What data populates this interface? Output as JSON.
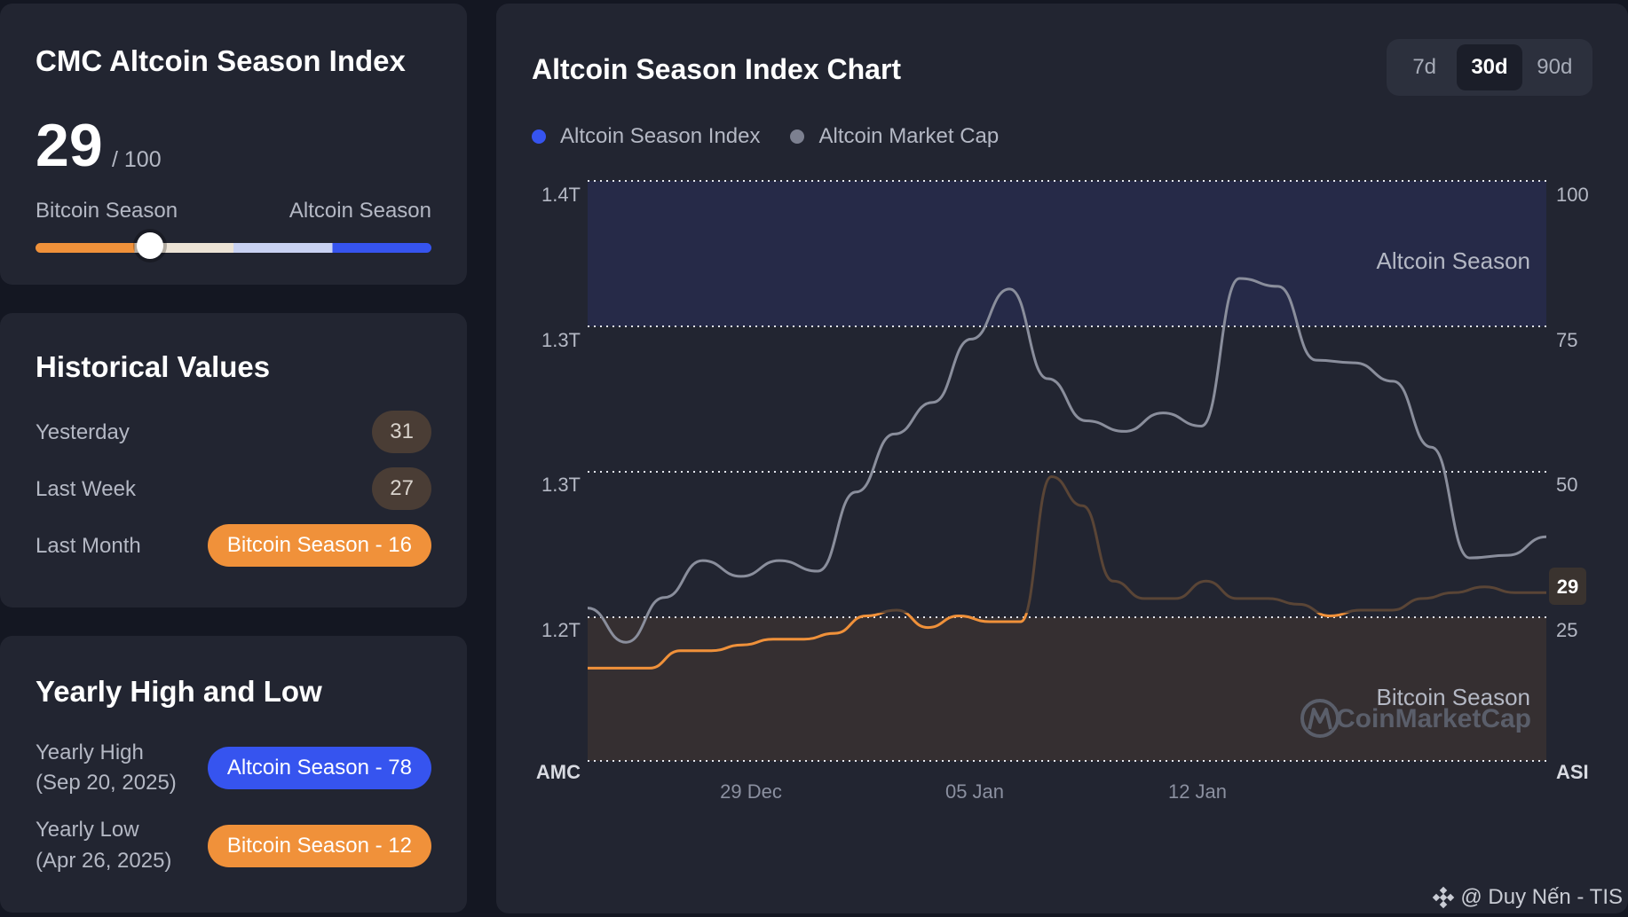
{
  "index_card": {
    "title": "CMC Altcoin Season Index",
    "value": "29",
    "max": "/ 100",
    "left_label": "Bitcoin Season",
    "right_label": "Altcoin Season",
    "level": 0.29
  },
  "historical": {
    "title": "Historical Values",
    "rows": [
      {
        "label": "Yesterday",
        "value": "31"
      },
      {
        "label": "Last Week",
        "value": "27"
      },
      {
        "label": "Last Month",
        "value": "Bitcoin Season - 16"
      }
    ]
  },
  "yearly": {
    "title": "Yearly High and Low",
    "high_label": "Yearly High",
    "high_date": "(Sep 20, 2025)",
    "high_value": "Altcoin Season - 78",
    "low_label": "Yearly Low",
    "low_date": "(Apr 26, 2025)",
    "low_value": "Bitcoin Season - 12"
  },
  "chart_card": {
    "title": "Altcoin Season Index Chart",
    "ranges": [
      "7d",
      "30d",
      "90d"
    ],
    "active_range": "30d",
    "legend": [
      "Altcoin Season Index",
      "Altcoin Market Cap"
    ],
    "current_badge": "29",
    "zone_top": "Altcoin Season",
    "zone_bottom": "Bitcoin Season",
    "watermark": "CoinMarketCap",
    "left_axis_title": "AMC",
    "right_axis_title": "ASI"
  },
  "colors": {
    "index_line": "#f0913a",
    "index_line_dim": "#5a4536",
    "market_cap_line": "#8a8e9c",
    "altcoin_zone": "#262a48",
    "bitcoin_zone": "#352f31",
    "legend_index_dot": "#3654ef",
    "legend_mc_dot": "#7c8090"
  },
  "chart_data": {
    "type": "line",
    "x_ticks": [
      "29 Dec",
      "05 Jan",
      "12 Jan"
    ],
    "left_axis_ticks": [
      "1.4T",
      "1.3T",
      "1.3T",
      "1.2T"
    ],
    "right_axis_ticks": [
      "100",
      "75",
      "50",
      "25"
    ],
    "right_ylim": [
      0,
      100
    ],
    "series": [
      {
        "name": "Altcoin Season Index",
        "axis": "right",
        "values": [
          16,
          16,
          16,
          19,
          19,
          20,
          21,
          21,
          22,
          25,
          26,
          23,
          25,
          24,
          24,
          49,
          44,
          31,
          28,
          28,
          31,
          28,
          28,
          27,
          25,
          26,
          26,
          28,
          29,
          30,
          29,
          29
        ]
      },
      {
        "name": "Altcoin Market Cap",
        "axis": "left",
        "values": [
          1.218,
          1.205,
          1.222,
          1.236,
          1.23,
          1.236,
          1.232,
          1.262,
          1.284,
          1.296,
          1.32,
          1.339,
          1.305,
          1.289,
          1.285,
          1.292,
          1.287,
          1.343,
          1.34,
          1.312,
          1.311,
          1.304,
          1.279,
          1.237,
          1.238,
          1.245
        ]
      }
    ],
    "zones": [
      {
        "label": "Altcoin Season",
        "from": 75,
        "to": 100
      },
      {
        "label": "Bitcoin Season",
        "from": 0,
        "to": 25
      }
    ]
  },
  "credit": "@ Duy Nến - TIS"
}
